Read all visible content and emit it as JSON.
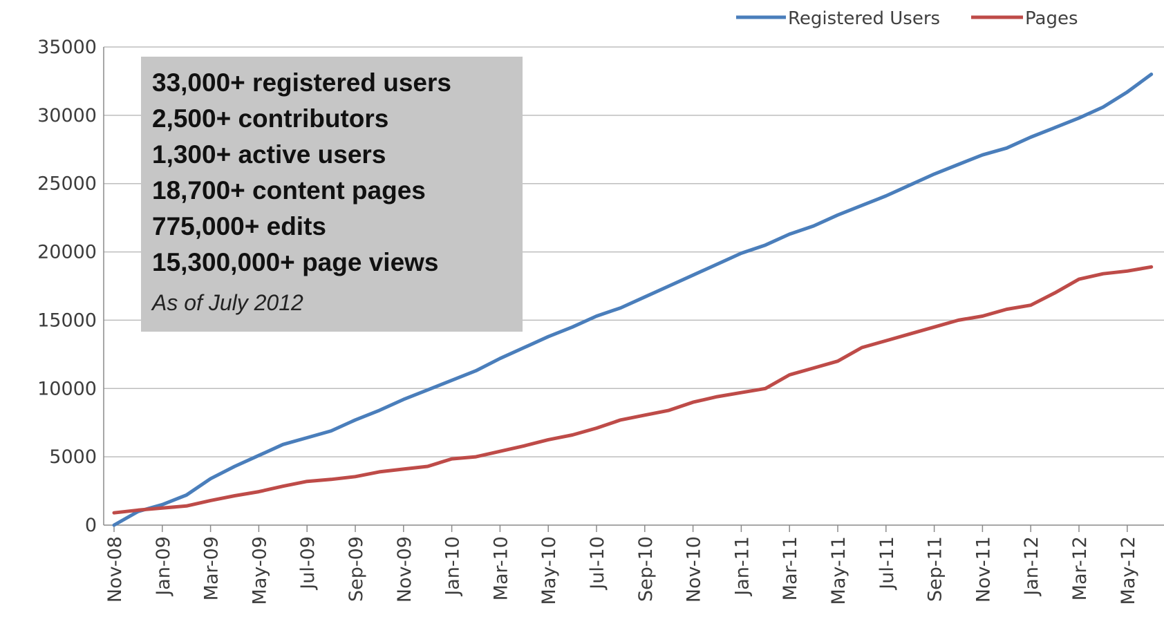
{
  "chart_data": {
    "type": "line",
    "title": "",
    "xlabel": "",
    "ylabel": "",
    "ylim": [
      0,
      35000
    ],
    "yticks": [
      0,
      5000,
      10000,
      15000,
      20000,
      25000,
      30000,
      35000
    ],
    "grid": true,
    "legend_position": "top-right",
    "x": [
      "Nov-08",
      "Dec-08",
      "Jan-09",
      "Feb-09",
      "Mar-09",
      "Apr-09",
      "May-09",
      "Jun-09",
      "Jul-09",
      "Aug-09",
      "Sep-09",
      "Oct-09",
      "Nov-09",
      "Dec-09",
      "Jan-10",
      "Feb-10",
      "Mar-10",
      "Apr-10",
      "May-10",
      "Jun-10",
      "Jul-10",
      "Aug-10",
      "Sep-10",
      "Oct-10",
      "Nov-10",
      "Dec-10",
      "Jan-11",
      "Feb-11",
      "Mar-11",
      "Apr-11",
      "May-11",
      "Jun-11",
      "Jul-11",
      "Aug-11",
      "Sep-11",
      "Oct-11",
      "Nov-11",
      "Dec-11",
      "Jan-12",
      "Feb-12",
      "Mar-12",
      "Apr-12",
      "May-12",
      "Jun-12"
    ],
    "x_tick_labels": [
      "Nov-08",
      "Jan-09",
      "Mar-09",
      "May-09",
      "Jul-09",
      "Sep-09",
      "Nov-09",
      "Jan-10",
      "Mar-10",
      "May-10",
      "Jul-10",
      "Sep-10",
      "Nov-10",
      "Jan-11",
      "Mar-11",
      "May-11",
      "Jul-11",
      "Sep-11",
      "Nov-11",
      "Jan-12",
      "Mar-12",
      "May-12"
    ],
    "series": [
      {
        "name": "Registered Users",
        "color": "#4a7ebb",
        "values": [
          0,
          1000,
          1500,
          2200,
          3400,
          4300,
          5100,
          5900,
          6400,
          6900,
          7700,
          8400,
          9200,
          9900,
          10600,
          11300,
          12200,
          13000,
          13800,
          14500,
          15300,
          15900,
          16700,
          17500,
          18300,
          19100,
          19900,
          20500,
          21300,
          21900,
          22700,
          23400,
          24100,
          24900,
          25700,
          26400,
          27100,
          27600,
          28400,
          29100,
          29800,
          30600,
          31700,
          33000
        ]
      },
      {
        "name": "Pages",
        "color": "#be4b48",
        "values": [
          900,
          1100,
          1250,
          1400,
          1800,
          2150,
          2450,
          2850,
          3200,
          3350,
          3550,
          3900,
          4100,
          4300,
          4850,
          5000,
          5400,
          5800,
          6250,
          6600,
          7100,
          7700,
          8050,
          8400,
          9000,
          9400,
          9700,
          10000,
          11000,
          11500,
          12000,
          13000,
          13500,
          14000,
          14500,
          15000,
          15300,
          15800,
          16100,
          17000,
          18000,
          18400,
          18600,
          18900
        ]
      }
    ]
  },
  "stats": {
    "lines": [
      "33,000+ registered users",
      "2,500+ contributors",
      "1,300+ active users",
      "18,700+ content pages",
      "775,000+ edits",
      "15,300,000+ page views"
    ],
    "note": "As of July 2012"
  }
}
